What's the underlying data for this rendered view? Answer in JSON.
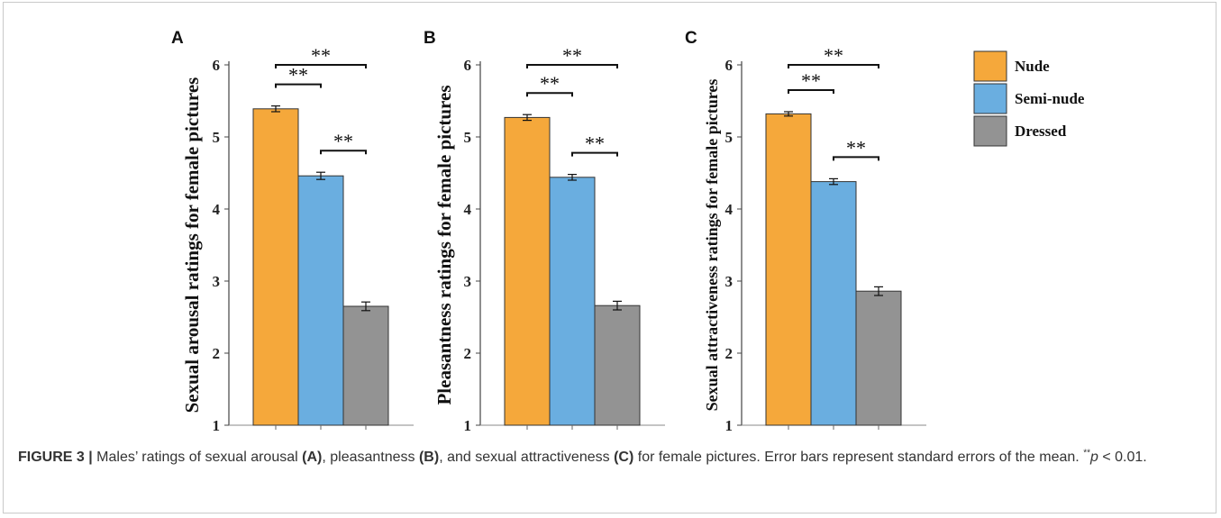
{
  "figure": {
    "legend": {
      "items": [
        {
          "label": "Nude",
          "color": "#F5A83B"
        },
        {
          "label": "Semi-nude",
          "color": "#6AAEE0"
        },
        {
          "label": "Dressed",
          "color": "#939393"
        }
      ]
    }
  },
  "chart_data": [
    {
      "type": "bar",
      "panel_label": "A",
      "categories": [
        "Nude",
        "Semi-nude",
        "Dressed"
      ],
      "values": [
        5.39,
        4.46,
        2.65
      ],
      "errors": [
        0.04,
        0.05,
        0.06
      ],
      "ylabel": "Sexual arousal ratings for female pictures",
      "ylim": [
        1,
        6
      ],
      "yticks": [
        "1",
        "2",
        "3",
        "4",
        "5",
        "6"
      ],
      "significance": [
        {
          "from": 0,
          "to": 2,
          "label": "**"
        },
        {
          "from": 0,
          "to": 1,
          "label": "**"
        },
        {
          "from": 1,
          "to": 2,
          "label": "**"
        }
      ]
    },
    {
      "type": "bar",
      "panel_label": "B",
      "categories": [
        "Nude",
        "Semi-nude",
        "Dressed"
      ],
      "values": [
        5.27,
        4.44,
        2.66
      ],
      "errors": [
        0.04,
        0.04,
        0.06
      ],
      "ylabel": "Pleasantness ratings for female pictures",
      "ylim": [
        1,
        6
      ],
      "yticks": [
        "1",
        "2",
        "3",
        "4",
        "5",
        "6"
      ],
      "significance": [
        {
          "from": 0,
          "to": 2,
          "label": "**"
        },
        {
          "from": 0,
          "to": 1,
          "label": "**"
        },
        {
          "from": 1,
          "to": 2,
          "label": "**"
        }
      ]
    },
    {
      "type": "bar",
      "panel_label": "C",
      "categories": [
        "Nude",
        "Semi-nude",
        "Dressed"
      ],
      "values": [
        5.32,
        4.38,
        2.86
      ],
      "errors": [
        0.03,
        0.04,
        0.06
      ],
      "ylabel": "Sexual attractiveness ratings for female pictures",
      "ylim": [
        1,
        6
      ],
      "yticks": [
        "1",
        "2",
        "3",
        "4",
        "5",
        "6"
      ],
      "significance": [
        {
          "from": 0,
          "to": 2,
          "label": "**"
        },
        {
          "from": 0,
          "to": 1,
          "label": "**"
        },
        {
          "from": 1,
          "to": 2,
          "label": "**"
        }
      ]
    }
  ],
  "caption": {
    "figure_number": "FIGURE 3 |",
    "part1": " Males’ ratings of sexual arousal ",
    "label_a": "(A)",
    "part2": ", pleasantness ",
    "label_b": "(B)",
    "part3": ", and sexual attractiveness ",
    "label_c": "(C)",
    "part4": " for female pictures. Error bars represent standard errors of the mean. ",
    "sig_mark": "**",
    "p_symbol": "p",
    "p_rest": " < 0.01."
  }
}
